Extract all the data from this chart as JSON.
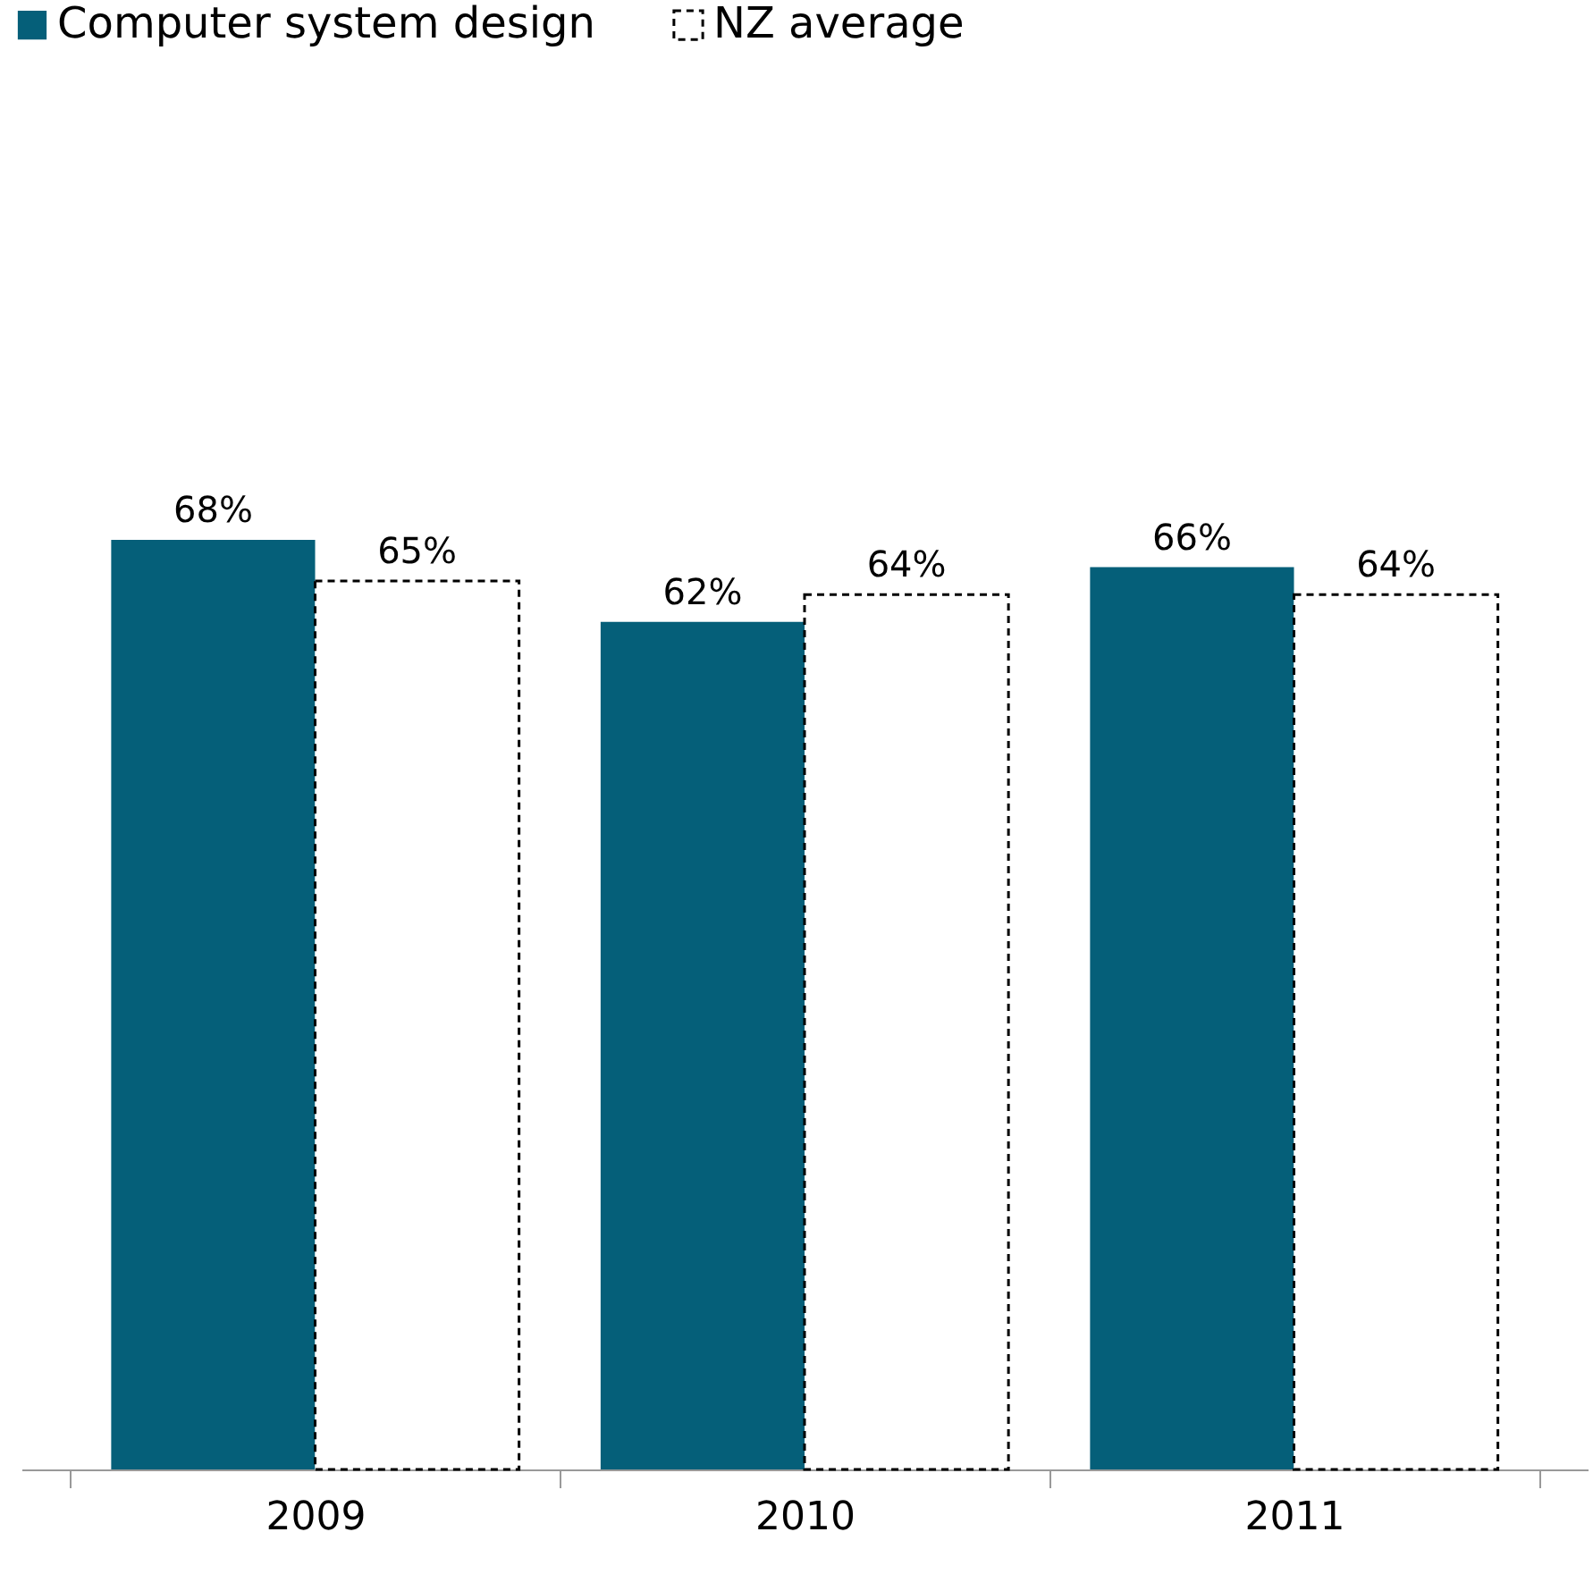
{
  "chart_data": {
    "type": "bar",
    "categories": [
      "2009",
      "2010",
      "2011"
    ],
    "series": [
      {
        "name": "Computer system design",
        "color": "#055f79",
        "values": [
          68,
          62,
          66
        ],
        "value_labels": [
          "68%",
          "62%",
          "66%"
        ]
      },
      {
        "name": "NZ average",
        "color": "#ffffff",
        "line_style": "dashed",
        "values": [
          65,
          64,
          64
        ],
        "value_labels": [
          "65%",
          "64%",
          "64%"
        ]
      }
    ],
    "tick_labels": "x",
    "legend": "top",
    "grid": false
  }
}
